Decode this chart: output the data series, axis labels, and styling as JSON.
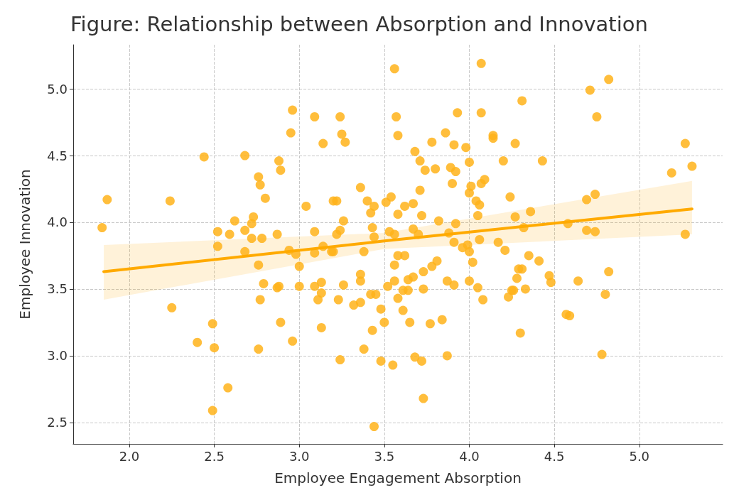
{
  "chart_data": {
    "type": "scatter",
    "title": "Figure: Relationship between Absorption and Innovation",
    "xlabel": "Employee Engagement Absorption",
    "ylabel": "Employee Innovation",
    "xlim": [
      1.67,
      5.49
    ],
    "ylim": [
      2.34,
      5.33
    ],
    "xticks": [
      {
        "value": 2,
        "label": "2.0"
      },
      {
        "value": 2.5,
        "label": "2.5"
      },
      {
        "value": 3,
        "label": "3.0"
      },
      {
        "value": 3.5,
        "label": "3.5"
      },
      {
        "value": 4,
        "label": "4.0"
      },
      {
        "value": 4.5,
        "label": "4.5"
      },
      {
        "value": 5,
        "label": "5.0"
      }
    ],
    "yticks": [
      {
        "value": 2.5,
        "label": "2.5"
      },
      {
        "value": 3,
        "label": "3.0"
      },
      {
        "value": 3.5,
        "label": "3.5"
      },
      {
        "value": 4,
        "label": "4.0"
      },
      {
        "value": 4.5,
        "label": "4.5"
      },
      {
        "value": 5,
        "label": "5.0"
      }
    ],
    "grid": true,
    "series": [
      {
        "marker": "circle",
        "color": "#ffb31a",
        "x": [
          1.84,
          1.87,
          2.24,
          2.25,
          2.44,
          2.49,
          2.4,
          2.5,
          2.58,
          2.49,
          2.52,
          2.59,
          2.52,
          2.62,
          2.68,
          2.68,
          2.68,
          2.72,
          2.73,
          2.72,
          2.76,
          2.77,
          2.8,
          2.78,
          2.76,
          2.77,
          2.79,
          2.76,
          2.87,
          2.88,
          2.89,
          2.96,
          2.87,
          2.88,
          2.89,
          2.95,
          2.96,
          2.94,
          2.98,
          3.0,
          3.0,
          3.04,
          3.09,
          3.09,
          3.09,
          3.09,
          3.11,
          3.13,
          3.13,
          3.13,
          3.14,
          3.14,
          3.19,
          3.2,
          3.2,
          3.22,
          3.22,
          3.24,
          3.26,
          3.24,
          3.25,
          3.27,
          3.26,
          3.23,
          3.24,
          3.32,
          3.36,
          3.36,
          3.36,
          3.36,
          3.38,
          3.38,
          3.4,
          3.42,
          3.44,
          3.43,
          3.44,
          3.42,
          3.45,
          3.43,
          3.44,
          3.48,
          3.5,
          3.48,
          3.51,
          3.54,
          3.53,
          3.52,
          3.56,
          3.56,
          3.57,
          3.58,
          3.58,
          3.56,
          3.58,
          3.62,
          3.56,
          3.58,
          3.55,
          3.61,
          3.61,
          3.64,
          3.65,
          3.62,
          3.67,
          3.67,
          3.68,
          3.7,
          3.64,
          3.67,
          3.68,
          3.71,
          3.71,
          3.72,
          3.72,
          3.73,
          3.73,
          3.73,
          3.74,
          3.77,
          3.78,
          3.78,
          3.8,
          3.81,
          3.82,
          3.84,
          3.86,
          3.87,
          3.87,
          3.88,
          3.89,
          3.9,
          3.91,
          3.92,
          3.91,
          3.91,
          3.92,
          3.93,
          3.96,
          3.98,
          3.99,
          4.0,
          4.0,
          4.0,
          4.01,
          4.02,
          4.0,
          4.04,
          4.05,
          4.05,
          4.06,
          4.06,
          4.07,
          4.07,
          4.07,
          4.09,
          4.08,
          4.14,
          4.14,
          4.17,
          4.2,
          4.21,
          4.23,
          4.24,
          4.25,
          4.26,
          4.27,
          4.27,
          4.28,
          4.29,
          4.31,
          4.3,
          4.31,
          4.32,
          4.33,
          4.35,
          4.36,
          4.41,
          4.43,
          4.47,
          4.48,
          4.57,
          4.59,
          4.58,
          4.64,
          4.69,
          4.74,
          4.69,
          4.74,
          4.71,
          4.75,
          4.78,
          4.8,
          4.82,
          4.82,
          5.19,
          5.27,
          5.27,
          5.31
        ],
        "values": [
          3.96,
          4.17,
          4.16,
          3.36,
          4.49,
          3.24,
          3.1,
          3.06,
          2.76,
          2.59,
          3.93,
          3.91,
          3.82,
          4.01,
          4.5,
          3.94,
          3.78,
          3.99,
          4.04,
          3.88,
          4.34,
          4.28,
          4.18,
          3.88,
          3.68,
          3.42,
          3.54,
          3.05,
          3.51,
          3.52,
          3.25,
          3.11,
          3.91,
          4.46,
          4.39,
          4.67,
          4.84,
          3.79,
          3.76,
          3.67,
          3.52,
          4.12,
          4.79,
          3.93,
          3.77,
          3.52,
          3.42,
          3.55,
          3.47,
          3.21,
          4.59,
          3.82,
          3.78,
          3.78,
          4.16,
          4.16,
          3.91,
          3.94,
          4.01,
          4.79,
          4.66,
          4.6,
          3.53,
          3.42,
          2.97,
          3.38,
          3.4,
          3.61,
          3.56,
          4.26,
          3.78,
          3.05,
          4.16,
          4.07,
          4.12,
          3.96,
          3.89,
          3.46,
          3.46,
          3.19,
          2.47,
          3.35,
          3.25,
          2.96,
          4.15,
          4.19,
          3.93,
          3.52,
          3.91,
          5.15,
          4.79,
          4.65,
          4.06,
          3.68,
          3.75,
          3.75,
          3.56,
          3.43,
          2.93,
          3.34,
          3.49,
          3.49,
          3.25,
          4.12,
          4.14,
          3.95,
          4.53,
          3.91,
          3.57,
          3.59,
          2.99,
          4.46,
          4.24,
          4.05,
          2.96,
          3.5,
          3.63,
          2.68,
          4.39,
          3.24,
          4.6,
          3.67,
          4.4,
          3.71,
          4.01,
          3.27,
          4.67,
          3.56,
          3.0,
          3.92,
          4.41,
          4.29,
          4.58,
          4.38,
          3.85,
          3.53,
          3.99,
          4.82,
          3.81,
          4.56,
          3.83,
          3.78,
          4.45,
          4.22,
          4.27,
          3.7,
          3.56,
          4.16,
          4.05,
          3.51,
          4.13,
          3.87,
          4.82,
          5.19,
          4.29,
          4.32,
          3.42,
          4.65,
          4.63,
          3.85,
          4.46,
          3.79,
          3.44,
          4.19,
          3.49,
          3.49,
          4.04,
          4.59,
          3.58,
          3.65,
          3.65,
          3.17,
          4.91,
          3.96,
          3.5,
          3.75,
          4.08,
          3.71,
          4.46,
          3.6,
          3.55,
          3.31,
          3.3,
          3.99,
          3.56,
          4.17,
          4.21,
          3.94,
          3.93,
          4.99,
          4.79,
          3.01,
          3.46,
          3.63,
          5.07,
          4.37,
          4.59,
          3.91,
          4.42
        ]
      },
      {
        "type": "line",
        "marker": "none",
        "color": "#ffaa00",
        "x": [
          1.85,
          3.5,
          5.31
        ],
        "values": [
          3.63,
          3.86,
          4.1
        ],
        "lower": [
          3.42,
          3.8,
          3.91
        ],
        "upper": [
          3.83,
          3.92,
          4.31
        ]
      }
    ]
  }
}
